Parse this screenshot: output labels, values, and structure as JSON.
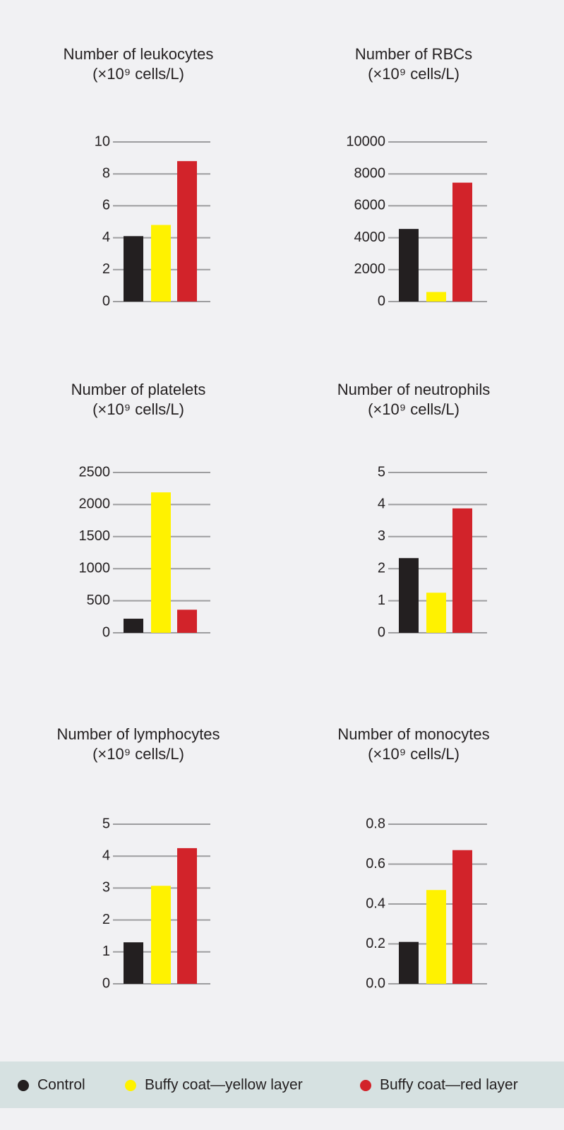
{
  "chart_data": [
    {
      "type": "bar",
      "title": "Number of leukocytes",
      "subtitle": "(×10⁹ cells/L)",
      "values": [
        4.1,
        4.8,
        8.8
      ],
      "ylim": [
        0,
        10
      ],
      "yticks": [
        0,
        2,
        4,
        6,
        8,
        10
      ],
      "grid": true
    },
    {
      "type": "bar",
      "title": "Number of RBCs",
      "subtitle": "(×10⁹ cells/L)",
      "values": [
        4550,
        600,
        7450
      ],
      "ylim": [
        0,
        10000
      ],
      "yticks": [
        0,
        2000,
        4000,
        6000,
        8000,
        10000
      ],
      "grid": true
    },
    {
      "type": "bar",
      "title": "Number of platelets",
      "subtitle": "(×10⁹ cells/L)",
      "values": [
        220,
        2190,
        360
      ],
      "ylim": [
        0,
        2500
      ],
      "yticks": [
        0,
        500,
        1000,
        1500,
        2000,
        2500
      ],
      "grid": true
    },
    {
      "type": "bar",
      "title": "Number of neutrophils",
      "subtitle": "(×10⁹ cells/L)",
      "values": [
        2.33,
        1.25,
        3.88
      ],
      "ylim": [
        0,
        5
      ],
      "yticks": [
        0,
        1,
        2,
        3,
        4,
        5
      ],
      "grid": true
    },
    {
      "type": "bar",
      "title": "Number of lymphocytes",
      "subtitle": "(×10⁹ cells/L)",
      "values": [
        1.3,
        3.07,
        4.25
      ],
      "ylim": [
        0,
        5
      ],
      "yticks": [
        0,
        1,
        2,
        3,
        4,
        5
      ],
      "grid": true
    },
    {
      "type": "bar",
      "title": "Number of monocytes",
      "subtitle": "(×10⁹ cells/L)",
      "values": [
        0.21,
        0.47,
        0.67
      ],
      "ylim": [
        0,
        0.8
      ],
      "yticks": [
        {
          "value": 0,
          "label": "0.0"
        },
        0.2,
        0.4,
        0.6,
        0.8
      ],
      "grid": true
    }
  ],
  "legend": {
    "items": [
      {
        "name": "Control",
        "color": "#231f20"
      },
      {
        "name": "Buffy coat—yellow layer",
        "color": "#fff200"
      },
      {
        "name": "Buffy coat—red layer",
        "color": "#d2232a"
      }
    ]
  }
}
